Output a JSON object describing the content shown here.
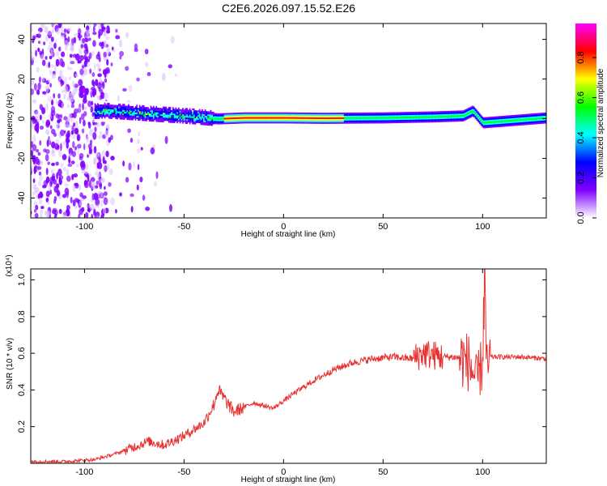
{
  "title": "C2E6.2026.097.15.52.E26",
  "chart_data": [
    {
      "type": "heatmap",
      "xlabel": "Height of straight line (km)",
      "ylabel": "Frequency (Hz)",
      "xlim": [
        -127,
        132
      ],
      "ylim": [
        -50,
        48
      ],
      "xticks": [
        -100,
        -50,
        0,
        50,
        100
      ],
      "yticks": [
        -40,
        -20,
        0,
        20,
        40
      ],
      "colorbar": {
        "label": "Normalized spectral amplitude",
        "range": [
          0,
          0.97
        ],
        "ticks": [
          0.0,
          0.2,
          0.4,
          0.6,
          0.8
        ],
        "colors": [
          "#ffffff",
          "#8000ff",
          "#0000ff",
          "#00ffff",
          "#00ff00",
          "#ffff00",
          "#ff0000",
          "#ff00ff"
        ]
      },
      "center_frequency_hz": [
        [
          -105,
          3
        ],
        [
          -90,
          4
        ],
        [
          -75,
          3
        ],
        [
          -60,
          2
        ],
        [
          -45,
          1
        ],
        [
          -33,
          0
        ],
        [
          -20,
          0.5
        ],
        [
          0,
          0.5
        ],
        [
          20,
          0.3
        ],
        [
          50,
          0.5
        ],
        [
          75,
          1
        ],
        [
          90,
          1.5
        ],
        [
          95,
          4
        ],
        [
          100,
          -2
        ],
        [
          132,
          0.5
        ]
      ],
      "scatter_region": {
        "x_range": [
          -127,
          -88
        ],
        "amplitude": "low-moderate"
      },
      "peak_region": {
        "x_range": [
          -30,
          30
        ],
        "amplitude": "high"
      }
    },
    {
      "type": "line",
      "xlabel": "Height of straight line (km)",
      "ylabel": "SNR (10 * v/v)",
      "yscale_note": "(x10⁴)",
      "xlim": [
        -127,
        132
      ],
      "ylim": [
        0,
        1.06
      ],
      "xticks": [
        -100,
        -50,
        0,
        50,
        100
      ],
      "yticks": [
        0.2,
        0.4,
        0.6,
        0.8,
        1.0
      ],
      "color": "#e83030",
      "series": [
        {
          "x": [
            -127,
            -110,
            -95,
            -85,
            -75,
            -68,
            -60,
            -50,
            -40,
            -35,
            -33,
            -25,
            -15,
            -5,
            5,
            15,
            25,
            35,
            45,
            55,
            65,
            70,
            75,
            80,
            85,
            90,
            93,
            97,
            100,
            101,
            102,
            104,
            110,
            120,
            132
          ],
          "y": [
            0.01,
            0.01,
            0.02,
            0.05,
            0.09,
            0.12,
            0.1,
            0.15,
            0.22,
            0.32,
            0.4,
            0.28,
            0.33,
            0.3,
            0.38,
            0.45,
            0.51,
            0.55,
            0.57,
            0.58,
            0.57,
            0.6,
            0.59,
            0.58,
            0.58,
            0.57,
            0.55,
            0.45,
            0.55,
            1.05,
            0.5,
            0.58,
            0.58,
            0.58,
            0.57
          ]
        }
      ]
    }
  ]
}
